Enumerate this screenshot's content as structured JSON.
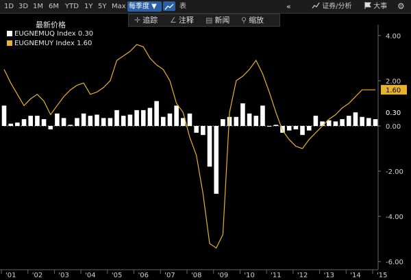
{
  "toolbar": {
    "ranges": [
      "1D",
      "3D",
      "1M",
      "6M",
      "YTD",
      "1Y",
      "5Y",
      "Max"
    ],
    "period_label": "每季度 ▼",
    "table_label": "表",
    "nav_label": "«",
    "securities_label": "证券/分析",
    "events_label": "大事",
    "settings_icon": "gear-icon"
  },
  "tools": {
    "track_label": "追踪",
    "annotate_label": "注释",
    "news_label": "新闻",
    "zoom_label": "缩放"
  },
  "legend": {
    "title": "最新价格",
    "items": [
      {
        "name": "EUGNEMUQ Index",
        "value": "0.30",
        "color": "#ffffff"
      },
      {
        "name": "EUGNEMUY Index",
        "value": "1.60",
        "color": "#e8b32c"
      }
    ]
  },
  "chart_data": {
    "type": "bar",
    "x_labels": [
      "'01",
      "'02",
      "'03",
      "'04",
      "'05",
      "'06",
      "'07",
      "'08",
      "'09",
      "'10",
      "'11",
      "'12",
      "'13",
      "'14",
      "'15"
    ],
    "ylim": [
      -6.3,
      4.3
    ],
    "y_ticks": [
      4.0,
      2.0,
      0.0,
      -2.0,
      -4.0,
      -6.0
    ],
    "y_tick_labels": [
      "4.00",
      "2.00",
      "0.00",
      "-2.00",
      "-4.00",
      "-6.00"
    ],
    "start_year": 2001,
    "grid": false,
    "legend_position": "top-left",
    "series": [
      {
        "name": "EUGNEMUQ Index",
        "type": "bar",
        "color": "#ffffff",
        "last_value": "0.30",
        "values": [
          0.9,
          0.1,
          0.15,
          0.3,
          0.45,
          0.45,
          0.3,
          -0.15,
          0.55,
          0.35,
          0.05,
          0.35,
          0.55,
          0.45,
          0.5,
          0.35,
          0.35,
          0.7,
          0.45,
          0.5,
          0.7,
          0.7,
          0.8,
          1.1,
          0.4,
          0.55,
          0.9,
          0.35,
          0.55,
          -0.3,
          -0.4,
          -1.8,
          -3.0,
          0.3,
          0.4,
          0.4,
          1.0,
          0.55,
          0.45,
          0.9,
          0.0,
          0.05,
          -0.3,
          -0.2,
          -0.15,
          -0.4,
          -0.2,
          0.45,
          0.2,
          0.25,
          0.2,
          0.3,
          0.45,
          0.6,
          0.4,
          0.35,
          0.3
        ]
      },
      {
        "name": "EUGNEMUY Index",
        "type": "line",
        "color": "#e8b32c",
        "last_value": "1.60",
        "values": [
          2.5,
          1.9,
          1.4,
          0.9,
          1.2,
          1.4,
          1.1,
          0.5,
          0.9,
          1.3,
          1.6,
          1.8,
          1.9,
          1.4,
          1.5,
          1.7,
          2.0,
          2.9,
          3.1,
          3.3,
          3.6,
          3.5,
          3.0,
          2.7,
          2.5,
          2.0,
          1.0,
          0.6,
          -0.5,
          -1.3,
          -3.0,
          -5.2,
          -5.4,
          -4.8,
          0.6,
          2.0,
          2.2,
          2.5,
          2.9,
          2.3,
          1.5,
          0.6,
          -0.2,
          -0.6,
          -0.9,
          -1.0,
          -0.6,
          -0.3,
          0.0,
          0.3,
          0.5,
          0.8,
          1.0,
          1.3,
          1.6,
          1.6,
          1.6
        ]
      }
    ]
  }
}
